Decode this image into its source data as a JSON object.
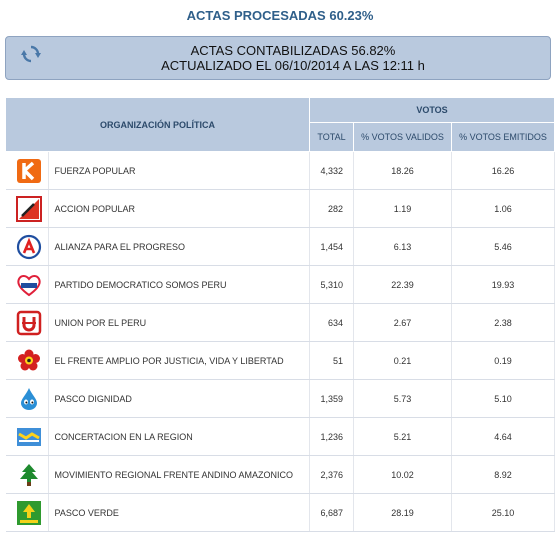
{
  "header": {
    "title": "ACTAS PROCESADAS 60.23%",
    "banner_line1": "ACTAS CONTABILIZADAS 56.82%",
    "banner_line2": "ACTUALIZADO EL 06/10/2014 A LAS 12:11 h"
  },
  "table": {
    "org_header": "ORGANIZACIÓN POLÍTICA",
    "votos_header": "VOTOS",
    "col_total": "TOTAL",
    "col_validos": "% VOTOS VALIDOS",
    "col_emitidos": "% VOTOS EMITIDOS",
    "rows": [
      {
        "name": "FUERZA POPULAR",
        "total": "4,332",
        "validos": "18.26",
        "emitidos": "16.26",
        "icon": "fuerza-popular-logo-icon"
      },
      {
        "name": "ACCION POPULAR",
        "total": "282",
        "validos": "1.19",
        "emitidos": "1.06",
        "icon": "accion-popular-logo-icon"
      },
      {
        "name": "ALIANZA PARA EL PROGRESO",
        "total": "1,454",
        "validos": "6.13",
        "emitidos": "5.46",
        "icon": "alianza-progreso-logo-icon"
      },
      {
        "name": "PARTIDO DEMOCRATICO SOMOS PERU",
        "total": "5,310",
        "validos": "22.39",
        "emitidos": "19.93",
        "icon": "somos-peru-logo-icon"
      },
      {
        "name": "UNION POR EL PERU",
        "total": "634",
        "validos": "2.67",
        "emitidos": "2.38",
        "icon": "union-por-el-peru-logo-icon"
      },
      {
        "name": "EL FRENTE AMPLIO POR JUSTICIA, VIDA Y LIBERTAD",
        "total": "51",
        "validos": "0.21",
        "emitidos": "0.19",
        "icon": "frente-amplio-logo-icon"
      },
      {
        "name": "PASCO DIGNIDAD",
        "total": "1,359",
        "validos": "5.73",
        "emitidos": "5.10",
        "icon": "pasco-dignidad-logo-icon"
      },
      {
        "name": "CONCERTACION EN LA REGION",
        "total": "1,236",
        "validos": "5.21",
        "emitidos": "4.64",
        "icon": "concertacion-logo-icon"
      },
      {
        "name": "MOVIMIENTO REGIONAL FRENTE ANDINO AMAZONICO",
        "total": "2,376",
        "validos": "10.02",
        "emitidos": "8.92",
        "icon": "frente-andino-logo-icon"
      },
      {
        "name": "PASCO VERDE",
        "total": "6,687",
        "validos": "28.19",
        "emitidos": "25.10",
        "icon": "pasco-verde-logo-icon"
      }
    ]
  },
  "colors": {
    "title_blue": "#2f5f8a",
    "header_bg": "#b9c9de",
    "header_text": "#2c4a6b"
  }
}
